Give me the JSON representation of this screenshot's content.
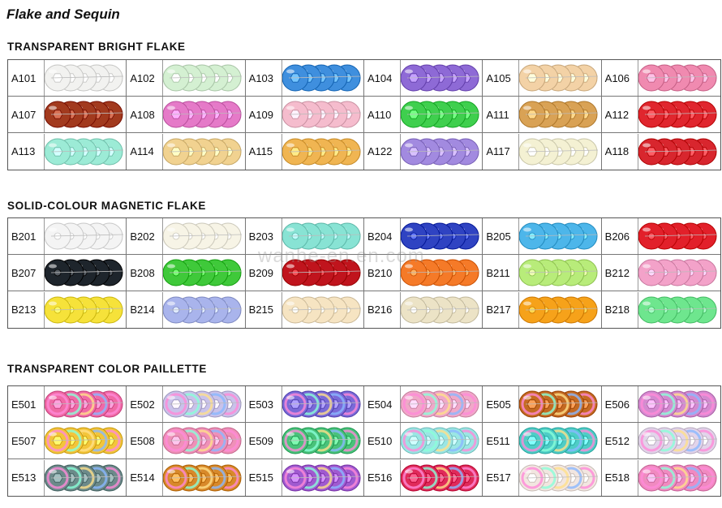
{
  "title": "Flake and Sequin",
  "watermark": "wanhe-en.en.com",
  "sections": [
    {
      "title": "TRANSPARENT BRIGHT FLAKE",
      "style": "hex",
      "items": [
        {
          "code": "A101",
          "color": "#f2f2f0"
        },
        {
          "code": "A102",
          "color": "#d4f0d2"
        },
        {
          "code": "A103",
          "color": "#3f8fde"
        },
        {
          "code": "A104",
          "color": "#8e6ad6"
        },
        {
          "code": "A105",
          "color": "#f3d2a6"
        },
        {
          "code": "A106",
          "color": "#f08ab0"
        },
        {
          "code": "A107",
          "color": "#a23a1e"
        },
        {
          "code": "A108",
          "color": "#e57ac8"
        },
        {
          "code": "A109",
          "color": "#f5bccd"
        },
        {
          "code": "A110",
          "color": "#3fcf4e"
        },
        {
          "code": "A111",
          "color": "#d9a255"
        },
        {
          "code": "A112",
          "color": "#e0262e"
        },
        {
          "code": "A113",
          "color": "#9cebd6"
        },
        {
          "code": "A114",
          "color": "#f1d290"
        },
        {
          "code": "A115",
          "color": "#f0b552"
        },
        {
          "code": "A122",
          "color": "#a28ae0"
        },
        {
          "code": "A117",
          "color": "#f4f1d3"
        },
        {
          "code": "A118",
          "color": "#d8262e"
        }
      ]
    },
    {
      "title": "SOLID-COLOUR MAGNETIC FLAKE",
      "style": "round",
      "items": [
        {
          "code": "B201",
          "color": "#f4f4f4"
        },
        {
          "code": "B202",
          "color": "#f7f4e6"
        },
        {
          "code": "B203",
          "color": "#88e3d4"
        },
        {
          "code": "B204",
          "color": "#2f43c2"
        },
        {
          "code": "B205",
          "color": "#4db6ea"
        },
        {
          "code": "B206",
          "color": "#e2202a"
        },
        {
          "code": "B207",
          "color": "#1e252c"
        },
        {
          "code": "B208",
          "color": "#3fc93a"
        },
        {
          "code": "B209",
          "color": "#c0141d"
        },
        {
          "code": "B210",
          "color": "#f57a28"
        },
        {
          "code": "B211",
          "color": "#b8ec7a"
        },
        {
          "code": "B212",
          "color": "#f3a2c9"
        },
        {
          "code": "B213",
          "color": "#f6e23a"
        },
        {
          "code": "B214",
          "color": "#a9b4ec"
        },
        {
          "code": "B215",
          "color": "#f6e4c2"
        },
        {
          "code": "B216",
          "color": "#ece3c6"
        },
        {
          "code": "B217",
          "color": "#f6a21a"
        },
        {
          "code": "B218",
          "color": "#6ee68e"
        }
      ]
    },
    {
      "title": "TRANSPARENT COLOR PAILLETTE",
      "style": "multi",
      "items": [
        {
          "code": "E501",
          "color": "#f06aa6"
        },
        {
          "code": "E502",
          "color": "#c9c2ea"
        },
        {
          "code": "E503",
          "color": "#7a6ad8"
        },
        {
          "code": "E504",
          "color": "#f0a8c8"
        },
        {
          "code": "E505",
          "color": "#c46a22"
        },
        {
          "code": "E506",
          "color": "#d48ad0"
        },
        {
          "code": "E507",
          "color": "#f3c53a"
        },
        {
          "code": "E508",
          "color": "#ef90b8"
        },
        {
          "code": "E509",
          "color": "#49c27a"
        },
        {
          "code": "E510",
          "color": "#9ae6e4"
        },
        {
          "code": "E511",
          "color": "#4ecdc6"
        },
        {
          "code": "E512",
          "color": "#e2d4ea"
        },
        {
          "code": "E513",
          "color": "#6c8a8a"
        },
        {
          "code": "E514",
          "color": "#d8892a"
        },
        {
          "code": "E515",
          "color": "#a05ad0"
        },
        {
          "code": "E516",
          "color": "#e02a5a"
        },
        {
          "code": "E517",
          "color": "#f2e6e0"
        },
        {
          "code": "E518",
          "color": "#f08ac0"
        }
      ]
    }
  ]
}
